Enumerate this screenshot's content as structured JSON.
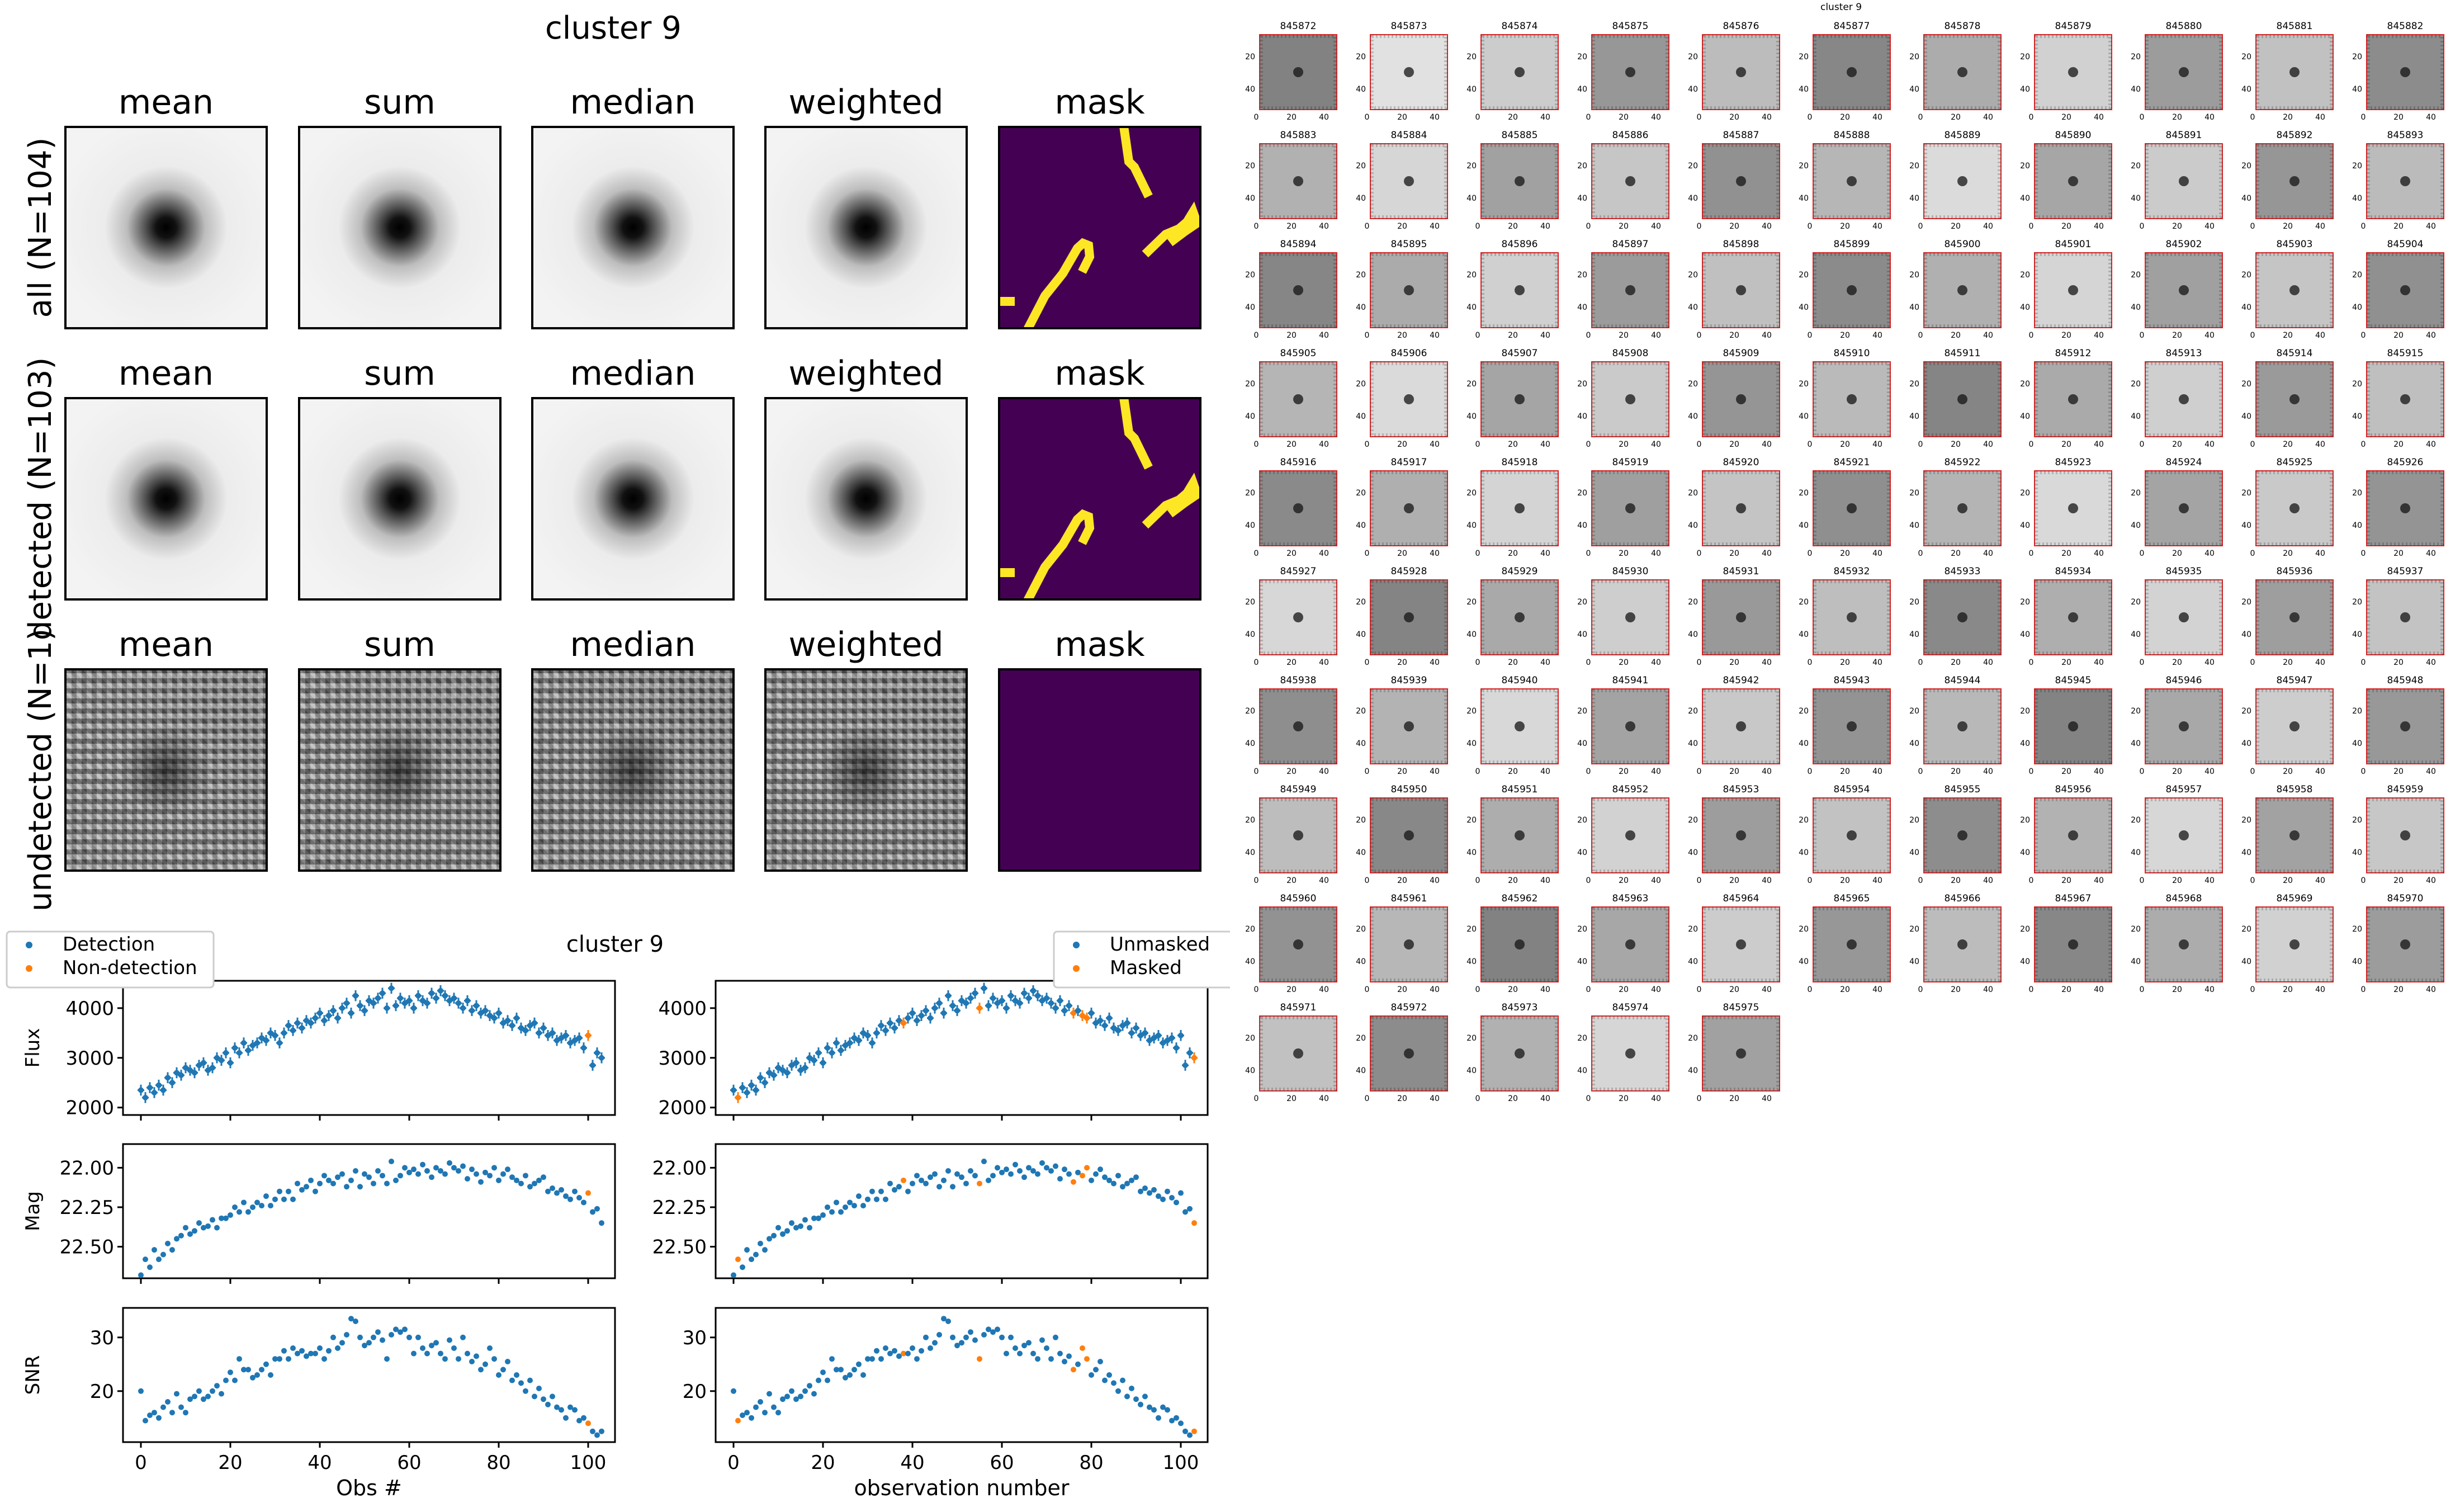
{
  "left_top": {
    "title": "cluster 9",
    "column_titles": [
      "mean",
      "sum",
      "median",
      "weighted",
      "mask"
    ],
    "rows": [
      {
        "label": "all (N=104)",
        "style": "psf",
        "mask": "streaks"
      },
      {
        "label": "detected (N=103)",
        "style": "psf",
        "mask": "streaks"
      },
      {
        "label": "undetected (N=1)",
        "style": "noise",
        "mask": "empty"
      }
    ],
    "colors": {
      "mask_bg": "#440154",
      "mask_fg": "#fde725"
    }
  },
  "chart_data": [
    {
      "type": "scatter",
      "title": "cluster 9",
      "xlabel": "Obs #",
      "legend": {
        "placement": "top-left-outside",
        "entries": [
          "Detection",
          "Non-detection"
        ]
      },
      "colors": {
        "Detection": "#1f77b4",
        "Non-detection": "#ff7f0e"
      },
      "x_ticks": [
        "0",
        "20",
        "40",
        "60",
        "80",
        "100"
      ],
      "xlim": [
        -4,
        106
      ],
      "panels": [
        {
          "ylabel": "Flux",
          "ylim": [
            1850,
            4550
          ],
          "yticks": [
            "2000",
            "3000",
            "4000"
          ],
          "inverted": false,
          "errorbars": true,
          "series": [
            {
              "name": "Detection",
              "x": [
                0,
                1,
                2,
                3,
                4,
                5,
                6,
                7,
                8,
                9,
                10,
                11,
                12,
                13,
                14,
                15,
                16,
                17,
                18,
                19,
                20,
                21,
                22,
                23,
                24,
                25,
                26,
                27,
                28,
                29,
                30,
                31,
                32,
                33,
                34,
                35,
                36,
                37,
                38,
                39,
                40,
                41,
                42,
                43,
                44,
                45,
                46,
                47,
                48,
                49,
                50,
                51,
                52,
                53,
                54,
                55,
                56,
                57,
                58,
                59,
                60,
                61,
                62,
                63,
                64,
                65,
                66,
                67,
                68,
                69,
                70,
                71,
                72,
                73,
                74,
                75,
                76,
                77,
                78,
                79,
                80,
                81,
                82,
                83,
                84,
                85,
                86,
                87,
                88,
                89,
                90,
                91,
                92,
                93,
                94,
                95,
                96,
                97,
                98,
                99,
                101,
                102,
                103
              ],
              "y": [
                2350,
                2200,
                2400,
                2300,
                2450,
                2350,
                2600,
                2500,
                2700,
                2650,
                2800,
                2750,
                2700,
                2850,
                2900,
                2750,
                2800,
                3000,
                2950,
                3100,
                2900,
                3200,
                3100,
                3300,
                3150,
                3250,
                3300,
                3400,
                3350,
                3500,
                3450,
                3300,
                3500,
                3650,
                3550,
                3700,
                3600,
                3750,
                3700,
                3800,
                3900,
                3750,
                3850,
                3950,
                3800,
                4000,
                4100,
                3900,
                4250,
                4050,
                3950,
                4150,
                4100,
                4200,
                4300,
                4000,
                4400,
                4050,
                4200,
                4100,
                4150,
                4000,
                4250,
                4150,
                4100,
                4300,
                4200,
                4350,
                4250,
                4150,
                4200,
                4100,
                4000,
                4150,
                3950,
                4050,
                3900,
                3950,
                3850,
                3800,
                3900,
                3700,
                3750,
                3650,
                3800,
                3600,
                3550,
                3650,
                3700,
                3500,
                3600,
                3450,
                3500,
                3350,
                3400,
                3450,
                3300,
                3350,
                3400,
                3200,
                2850,
                3100,
                3000
              ]
            },
            {
              "name": "Non-detection",
              "x": [
                100
              ],
              "y": [
                3450
              ]
            }
          ]
        },
        {
          "ylabel": "Mag",
          "ylim": [
            22.7,
            21.85
          ],
          "yticks": [
            "22.00",
            "22.25",
            "22.50"
          ],
          "inverted": true,
          "errorbars": false,
          "series": [
            {
              "name": "Detection",
              "x": [
                0,
                1,
                2,
                3,
                4,
                5,
                6,
                7,
                8,
                9,
                10,
                11,
                12,
                13,
                14,
                15,
                16,
                17,
                18,
                19,
                20,
                21,
                22,
                23,
                24,
                25,
                26,
                27,
                28,
                29,
                30,
                31,
                32,
                33,
                34,
                35,
                36,
                37,
                38,
                39,
                40,
                41,
                42,
                43,
                44,
                45,
                46,
                47,
                48,
                49,
                50,
                51,
                52,
                53,
                54,
                55,
                56,
                57,
                58,
                59,
                60,
                61,
                62,
                63,
                64,
                65,
                66,
                67,
                68,
                69,
                70,
                71,
                72,
                73,
                74,
                75,
                76,
                77,
                78,
                79,
                80,
                81,
                82,
                83,
                84,
                85,
                86,
                87,
                88,
                89,
                90,
                91,
                92,
                93,
                94,
                95,
                96,
                97,
                98,
                99,
                101,
                102,
                103
              ],
              "y": [
                22.68,
                22.58,
                22.63,
                22.52,
                22.58,
                22.55,
                22.48,
                22.52,
                22.45,
                22.43,
                22.38,
                22.42,
                22.4,
                22.35,
                22.38,
                22.37,
                22.33,
                22.38,
                22.32,
                22.32,
                22.3,
                22.25,
                22.28,
                22.22,
                22.28,
                22.25,
                22.22,
                22.24,
                22.18,
                22.24,
                22.2,
                22.15,
                22.2,
                22.15,
                22.2,
                22.1,
                22.14,
                22.12,
                22.08,
                22.15,
                22.1,
                22.05,
                22.08,
                22.1,
                22.06,
                22.04,
                22.12,
                22.08,
                22.02,
                22.12,
                22.04,
                22.06,
                22.1,
                22.02,
                22.05,
                22.1,
                21.96,
                22.08,
                22.05,
                22.0,
                22.03,
                22.01,
                22.04,
                21.98,
                22.02,
                22.06,
                22.0,
                22.02,
                22.04,
                21.97,
                22.0,
                22.02,
                21.99,
                22.07,
                22.01,
                22.04,
                22.09,
                22.03,
                22.05,
                22.0,
                22.08,
                22.04,
                22.01,
                22.06,
                22.08,
                22.1,
                22.05,
                22.12,
                22.1,
                22.08,
                22.06,
                22.15,
                22.13,
                22.16,
                22.14,
                22.18,
                22.2,
                22.15,
                22.19,
                22.22,
                22.28,
                22.26,
                22.35
              ]
            },
            {
              "name": "Non-detection",
              "x": [
                100
              ],
              "y": [
                22.16
              ]
            }
          ]
        },
        {
          "ylabel": "SNR",
          "ylim": [
            10.5,
            35.5
          ],
          "yticks": [
            "20",
            "30"
          ],
          "inverted": false,
          "errorbars": false,
          "series": [
            {
              "name": "Detection",
              "x": [
                0,
                1,
                2,
                3,
                4,
                5,
                6,
                7,
                8,
                9,
                10,
                11,
                12,
                13,
                14,
                15,
                16,
                17,
                18,
                19,
                20,
                21,
                22,
                23,
                24,
                25,
                26,
                27,
                28,
                29,
                30,
                31,
                32,
                33,
                34,
                35,
                36,
                37,
                38,
                39,
                40,
                41,
                42,
                43,
                44,
                45,
                46,
                47,
                48,
                49,
                50,
                51,
                52,
                53,
                54,
                55,
                56,
                57,
                58,
                59,
                60,
                61,
                62,
                63,
                64,
                65,
                66,
                67,
                68,
                69,
                70,
                71,
                72,
                73,
                74,
                75,
                76,
                77,
                78,
                79,
                80,
                81,
                82,
                83,
                84,
                85,
                86,
                87,
                88,
                89,
                90,
                91,
                92,
                93,
                94,
                95,
                96,
                97,
                98,
                99,
                101,
                102,
                103
              ],
              "y": [
                20,
                14.5,
                15.5,
                16,
                15,
                17,
                18,
                16,
                19.5,
                17,
                16,
                18.5,
                19,
                20,
                18.5,
                19,
                20,
                21,
                19.5,
                22,
                23.5,
                22,
                26,
                24,
                24,
                22.5,
                23,
                24,
                25,
                23,
                26,
                26,
                27.5,
                26,
                28,
                27,
                27.5,
                26.5,
                27,
                27,
                28,
                26,
                27.5,
                30,
                28,
                29,
                30.5,
                33.5,
                33,
                30,
                28.5,
                29,
                30,
                31,
                29.5,
                26,
                30.5,
                31.5,
                31,
                31.5,
                30,
                27,
                30,
                28,
                27,
                28.5,
                29,
                27,
                26,
                29.5,
                28,
                26,
                30,
                27,
                25.5,
                26.5,
                24,
                25,
                28,
                26,
                23,
                24,
                25.5,
                22,
                23,
                21.5,
                20,
                22,
                19,
                20.5,
                18.5,
                17.5,
                19,
                17,
                16.5,
                15,
                17,
                16.5,
                14.5,
                15,
                12.5,
                11.8,
                12.5
              ]
            },
            {
              "name": "Non-detection",
              "x": [
                100
              ],
              "y": [
                14
              ]
            }
          ]
        }
      ]
    },
    {
      "type": "scatter",
      "xlabel": "observation number",
      "legend": {
        "placement": "top-right-outside",
        "entries": [
          "Unmasked",
          "Masked"
        ]
      },
      "colors": {
        "Unmasked": "#1f77b4",
        "Masked": "#ff7f0e"
      },
      "x_ticks": [
        "0",
        "20",
        "40",
        "60",
        "80",
        "100"
      ],
      "xlim": [
        -4,
        106
      ],
      "panels": [
        {
          "ylabel": "",
          "ylim": [
            1850,
            4550
          ],
          "yticks": [
            "2000",
            "3000",
            "4000"
          ],
          "inverted": false,
          "errorbars": true,
          "masked_x": [
            1,
            38,
            55,
            76,
            78,
            79,
            103
          ]
        },
        {
          "ylabel": "",
          "ylim": [
            22.7,
            21.85
          ],
          "yticks": [
            "22.00",
            "22.25",
            "22.50"
          ],
          "inverted": true,
          "errorbars": false,
          "masked_x": [
            1,
            38,
            55,
            76,
            78,
            79,
            103
          ]
        },
        {
          "ylabel": "",
          "ylim": [
            10.5,
            35.5
          ],
          "yticks": [
            "20",
            "30"
          ],
          "inverted": false,
          "errorbars": false,
          "masked_x": [
            1,
            38,
            55,
            76,
            78,
            79,
            103
          ]
        }
      ]
    }
  ],
  "thumbnails": {
    "title": "cluster 9",
    "ids": [
      "845872",
      "845873",
      "845874",
      "845875",
      "845876",
      "845877",
      "845878",
      "845879",
      "845880",
      "845881",
      "845882",
      "845883",
      "845884",
      "845885",
      "845886",
      "845887",
      "845888",
      "845889",
      "845890",
      "845891",
      "845892",
      "845893",
      "845894",
      "845895",
      "845896",
      "845897",
      "845898",
      "845899",
      "845900",
      "845901",
      "845902",
      "845903",
      "845904",
      "845905",
      "845906",
      "845907",
      "845908",
      "845909",
      "845910",
      "845911",
      "845912",
      "845913",
      "845914",
      "845915",
      "845916",
      "845917",
      "845918",
      "845919",
      "845920",
      "845921",
      "845922",
      "845923",
      "845924",
      "845925",
      "845926",
      "845927",
      "845928",
      "845929",
      "845930",
      "845931",
      "845932",
      "845933",
      "845934",
      "845935",
      "845936",
      "845937",
      "845938",
      "845939",
      "845940",
      "845941",
      "845942",
      "845943",
      "845944",
      "845945",
      "845946",
      "845947",
      "845948",
      "845949",
      "845950",
      "845951",
      "845952",
      "845953",
      "845954",
      "845955",
      "845956",
      "845957",
      "845958",
      "845959",
      "845960",
      "845961",
      "845962",
      "845963",
      "845964",
      "845965",
      "845966",
      "845967",
      "845968",
      "845969",
      "845970",
      "845971",
      "845972",
      "845973",
      "845974",
      "845975"
    ],
    "axis_ticks_x": [
      "0",
      "20",
      "40"
    ],
    "axis_ticks_y": [
      "20",
      "40"
    ],
    "frame_color": "#d62728"
  }
}
